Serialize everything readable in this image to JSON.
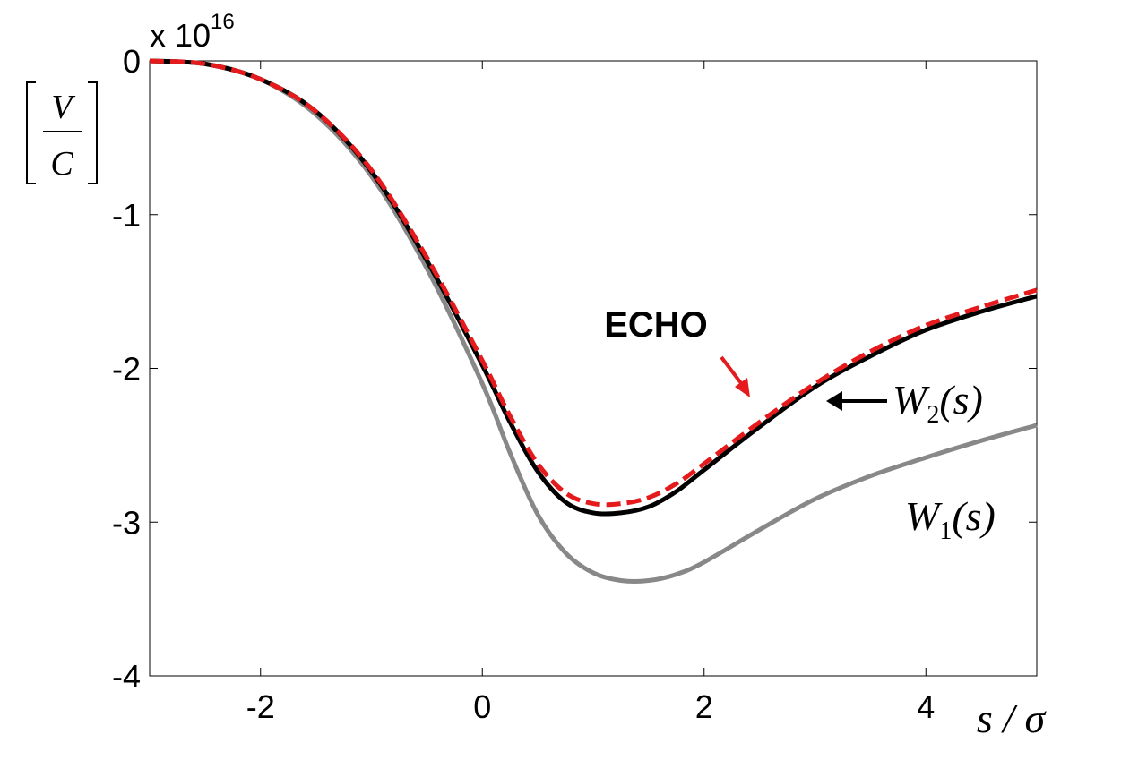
{
  "chart_data": {
    "type": "line",
    "xlabel": "s / σ",
    "ylabel": {
      "numerator": "V",
      "denominator": "C"
    },
    "y_multiplier": {
      "base": "x 10",
      "exponent": "16"
    },
    "xlim": [
      -3,
      5
    ],
    "ylim": [
      -4,
      0
    ],
    "xticks": [
      -2,
      0,
      2,
      4
    ],
    "xtick_labels": [
      "-2",
      "0",
      "2",
      "4"
    ],
    "yticks": [
      0,
      -1,
      -2,
      -3,
      -4
    ],
    "ytick_labels": [
      "0",
      "-1",
      "-2",
      "-3",
      "-4"
    ],
    "grid": false,
    "series": [
      {
        "name": "W1(s)",
        "label": {
          "letter": "W",
          "subscript": "1",
          "arg": "(s)"
        },
        "color": "#888888",
        "style": "solid",
        "x": [
          -3,
          -2.5,
          -2,
          -1.5,
          -1,
          -0.5,
          0,
          0.25,
          0.5,
          0.75,
          1,
          1.25,
          1.5,
          1.75,
          2,
          2.5,
          3,
          3.5,
          4,
          4.5,
          5
        ],
        "y": [
          0,
          -0.02,
          -0.12,
          -0.35,
          -0.75,
          -1.35,
          -2.1,
          -2.55,
          -2.95,
          -3.2,
          -3.33,
          -3.38,
          -3.38,
          -3.34,
          -3.26,
          -3.05,
          -2.85,
          -2.7,
          -2.58,
          -2.47,
          -2.37
        ]
      },
      {
        "name": "W2(s)",
        "label": {
          "letter": "W",
          "subscript": "2",
          "arg": "(s)"
        },
        "color": "#000000",
        "style": "solid",
        "x": [
          -3,
          -2.5,
          -2,
          -1.5,
          -1,
          -0.5,
          0,
          0.25,
          0.5,
          0.75,
          1,
          1.25,
          1.5,
          1.75,
          2,
          2.5,
          3,
          3.5,
          4,
          4.5,
          5
        ],
        "y": [
          0,
          -0.02,
          -0.12,
          -0.33,
          -0.72,
          -1.3,
          -1.98,
          -2.35,
          -2.67,
          -2.87,
          -2.94,
          -2.94,
          -2.9,
          -2.8,
          -2.66,
          -2.38,
          -2.12,
          -1.92,
          -1.75,
          -1.63,
          -1.53
        ]
      },
      {
        "name": "ECHO",
        "color": "#e41a1c",
        "style": "dashed",
        "x": [
          -3,
          -2.5,
          -2,
          -1.5,
          -1,
          -0.5,
          0,
          0.25,
          0.5,
          0.75,
          1,
          1.25,
          1.5,
          1.75,
          2,
          2.5,
          3,
          3.5,
          4,
          4.5,
          5
        ],
        "y": [
          0,
          -0.02,
          -0.12,
          -0.33,
          -0.71,
          -1.28,
          -1.95,
          -2.31,
          -2.62,
          -2.81,
          -2.88,
          -2.88,
          -2.84,
          -2.75,
          -2.62,
          -2.35,
          -2.1,
          -1.89,
          -1.72,
          -1.6,
          -1.49
        ]
      }
    ],
    "annotations": {
      "echo_label": "ECHO",
      "echo_color": "#e41a1c"
    }
  }
}
